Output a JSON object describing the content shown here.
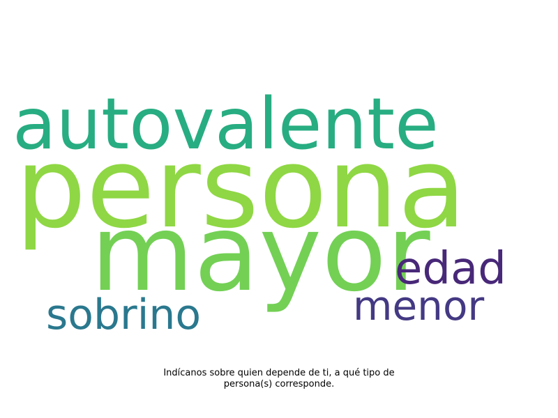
{
  "word_cloud": {
    "words": [
      {
        "text": "autovalente",
        "color": "#27ad81"
      },
      {
        "text": "persona",
        "color": "#8fd744"
      },
      {
        "text": "mayor",
        "color": "#73d055"
      },
      {
        "text": "edad",
        "color": "#482878"
      },
      {
        "text": "menor",
        "color": "#443983"
      },
      {
        "text": "sobrino",
        "color": "#2a788e"
      }
    ]
  },
  "caption": {
    "line1": "Indícanos sobre quien depende de ti, a qué tipo de",
    "line2": "persona(s) corresponde."
  }
}
